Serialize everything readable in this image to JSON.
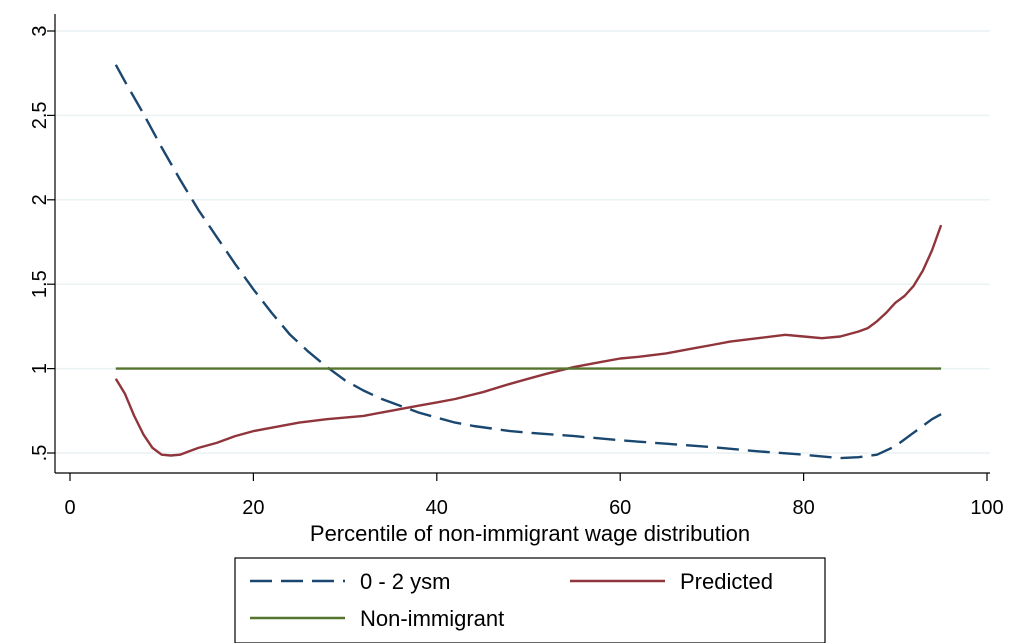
{
  "chart_data": {
    "type": "line",
    "title": "",
    "xlabel": "Percentile of non-immigrant wage distribution",
    "ylabel": "",
    "xlim": [
      0,
      100
    ],
    "ylim": [
      0.4,
      3.0
    ],
    "x_ticks": [
      0,
      20,
      40,
      60,
      80,
      100
    ],
    "x_tick_labels": [
      "0",
      "20",
      "40",
      "60",
      "80",
      "100"
    ],
    "y_ticks": [
      0.5,
      1,
      1.5,
      2,
      2.5,
      3
    ],
    "y_tick_labels": [
      ".5",
      "1",
      "1.5",
      "2",
      "2.5",
      "3"
    ],
    "grid": true,
    "legend_position": "bottom",
    "series": [
      {
        "name": "0 - 2 ysm",
        "color": "#1a476f",
        "style": "dashed",
        "x": [
          5,
          6,
          8,
          10,
          12,
          14,
          16,
          18,
          20,
          22,
          24,
          26,
          28,
          30,
          32,
          34,
          36,
          38,
          40,
          42,
          44,
          46,
          48,
          50,
          55,
          60,
          65,
          70,
          75,
          80,
          82,
          84,
          86,
          88,
          90,
          92,
          94,
          95
        ],
        "y": [
          2.8,
          2.7,
          2.51,
          2.31,
          2.12,
          1.94,
          1.78,
          1.62,
          1.47,
          1.33,
          1.2,
          1.1,
          1.01,
          0.93,
          0.87,
          0.82,
          0.78,
          0.74,
          0.71,
          0.68,
          0.66,
          0.645,
          0.63,
          0.62,
          0.6,
          0.575,
          0.555,
          0.535,
          0.51,
          0.49,
          0.48,
          0.47,
          0.475,
          0.49,
          0.54,
          0.62,
          0.7,
          0.73
        ]
      },
      {
        "name": "Predicted",
        "color": "#90353b",
        "style": "solid",
        "x": [
          5,
          6,
          7,
          8,
          9,
          10,
          11,
          12,
          13,
          14,
          16,
          18,
          20,
          22,
          25,
          28,
          30,
          32,
          35,
          38,
          40,
          42,
          45,
          48,
          50,
          52,
          55,
          58,
          60,
          62,
          65,
          68,
          70,
          72,
          75,
          78,
          80,
          82,
          84,
          86,
          87,
          88,
          89,
          90,
          91,
          92,
          93,
          94,
          95
        ],
        "y": [
          0.94,
          0.85,
          0.72,
          0.61,
          0.53,
          0.49,
          0.485,
          0.49,
          0.51,
          0.53,
          0.56,
          0.6,
          0.63,
          0.65,
          0.68,
          0.7,
          0.71,
          0.72,
          0.75,
          0.78,
          0.8,
          0.82,
          0.86,
          0.91,
          0.94,
          0.97,
          1.01,
          1.04,
          1.06,
          1.07,
          1.09,
          1.12,
          1.14,
          1.16,
          1.18,
          1.2,
          1.19,
          1.18,
          1.19,
          1.22,
          1.24,
          1.28,
          1.33,
          1.39,
          1.43,
          1.49,
          1.58,
          1.7,
          1.85
        ]
      },
      {
        "name": "Non-immigrant",
        "color": "#55752f",
        "style": "solid",
        "x": [
          5,
          95
        ],
        "y": [
          1.0,
          1.0
        ]
      }
    ]
  }
}
